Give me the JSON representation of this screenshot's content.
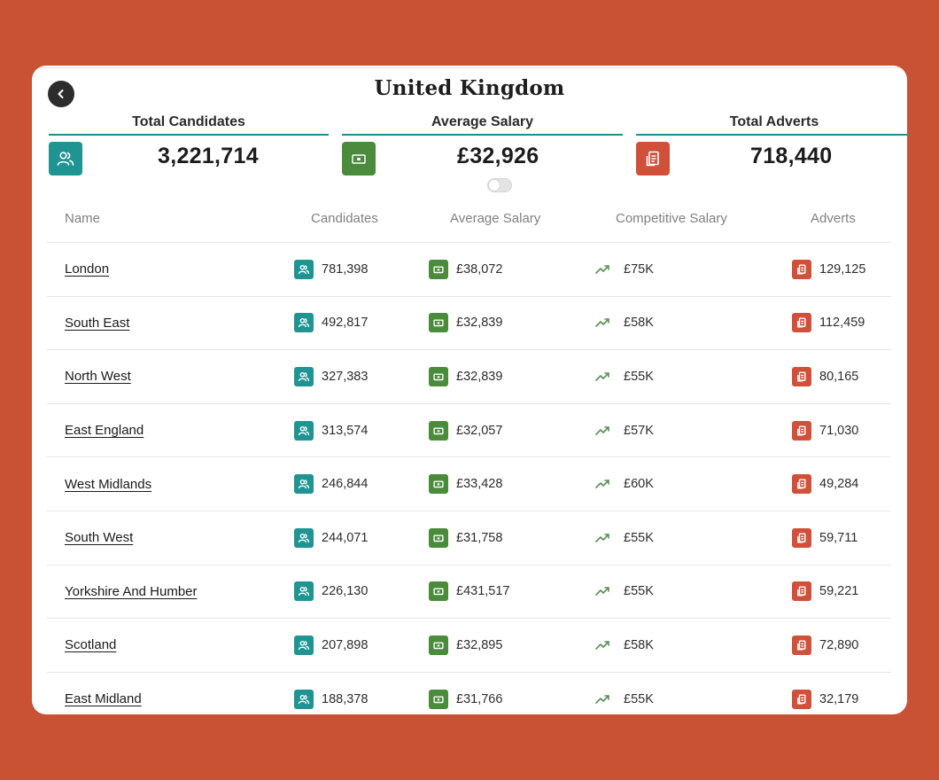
{
  "page": {
    "title": "United Kingdom"
  },
  "stats": {
    "candidates": {
      "label": "Total Candidates",
      "value": "3,221,714",
      "icon": "people-icon"
    },
    "salary": {
      "label": "Average Salary",
      "value": "£32,926",
      "icon": "cash-icon"
    },
    "adverts": {
      "label": "Total Adverts",
      "value": "718,440",
      "icon": "advert-icon"
    }
  },
  "colors": {
    "teal": "#1f9493",
    "green": "#4a8b3c",
    "red": "#d0503a",
    "background": "#c95235"
  },
  "table": {
    "headers": {
      "name": "Name",
      "candidates": "Candidates",
      "avg_salary": "Average Salary",
      "competitive_salary": "Competitive Salary",
      "adverts": "Adverts"
    },
    "rows": [
      {
        "name": "London",
        "candidates": "781,398",
        "avg_salary": "£38,072",
        "competitive": "£75K",
        "adverts": "129,125"
      },
      {
        "name": "South East",
        "candidates": "492,817",
        "avg_salary": "£32,839",
        "competitive": "£58K",
        "adverts": "112,459"
      },
      {
        "name": "North West",
        "candidates": "327,383",
        "avg_salary": "£32,839",
        "competitive": "£55K",
        "adverts": "80,165"
      },
      {
        "name": "East England",
        "candidates": "313,574",
        "avg_salary": "£32,057",
        "competitive": "£57K",
        "adverts": "71,030"
      },
      {
        "name": "West Midlands",
        "candidates": "246,844",
        "avg_salary": "£33,428",
        "competitive": "£60K",
        "adverts": "49,284"
      },
      {
        "name": "South West",
        "candidates": "244,071",
        "avg_salary": "£31,758",
        "competitive": "£55K",
        "adverts": "59,711"
      },
      {
        "name": "Yorkshire And Humber",
        "candidates": "226,130",
        "avg_salary": "£431,517",
        "competitive": "£55K",
        "adverts": "59,221"
      },
      {
        "name": "Scotland",
        "candidates": "207,898",
        "avg_salary": "£32,895",
        "competitive": "£58K",
        "adverts": "72,890"
      },
      {
        "name": "East Midland",
        "candidates": "188,378",
        "avg_salary": "£31,766",
        "competitive": "£55K",
        "adverts": "32,179"
      }
    ]
  }
}
